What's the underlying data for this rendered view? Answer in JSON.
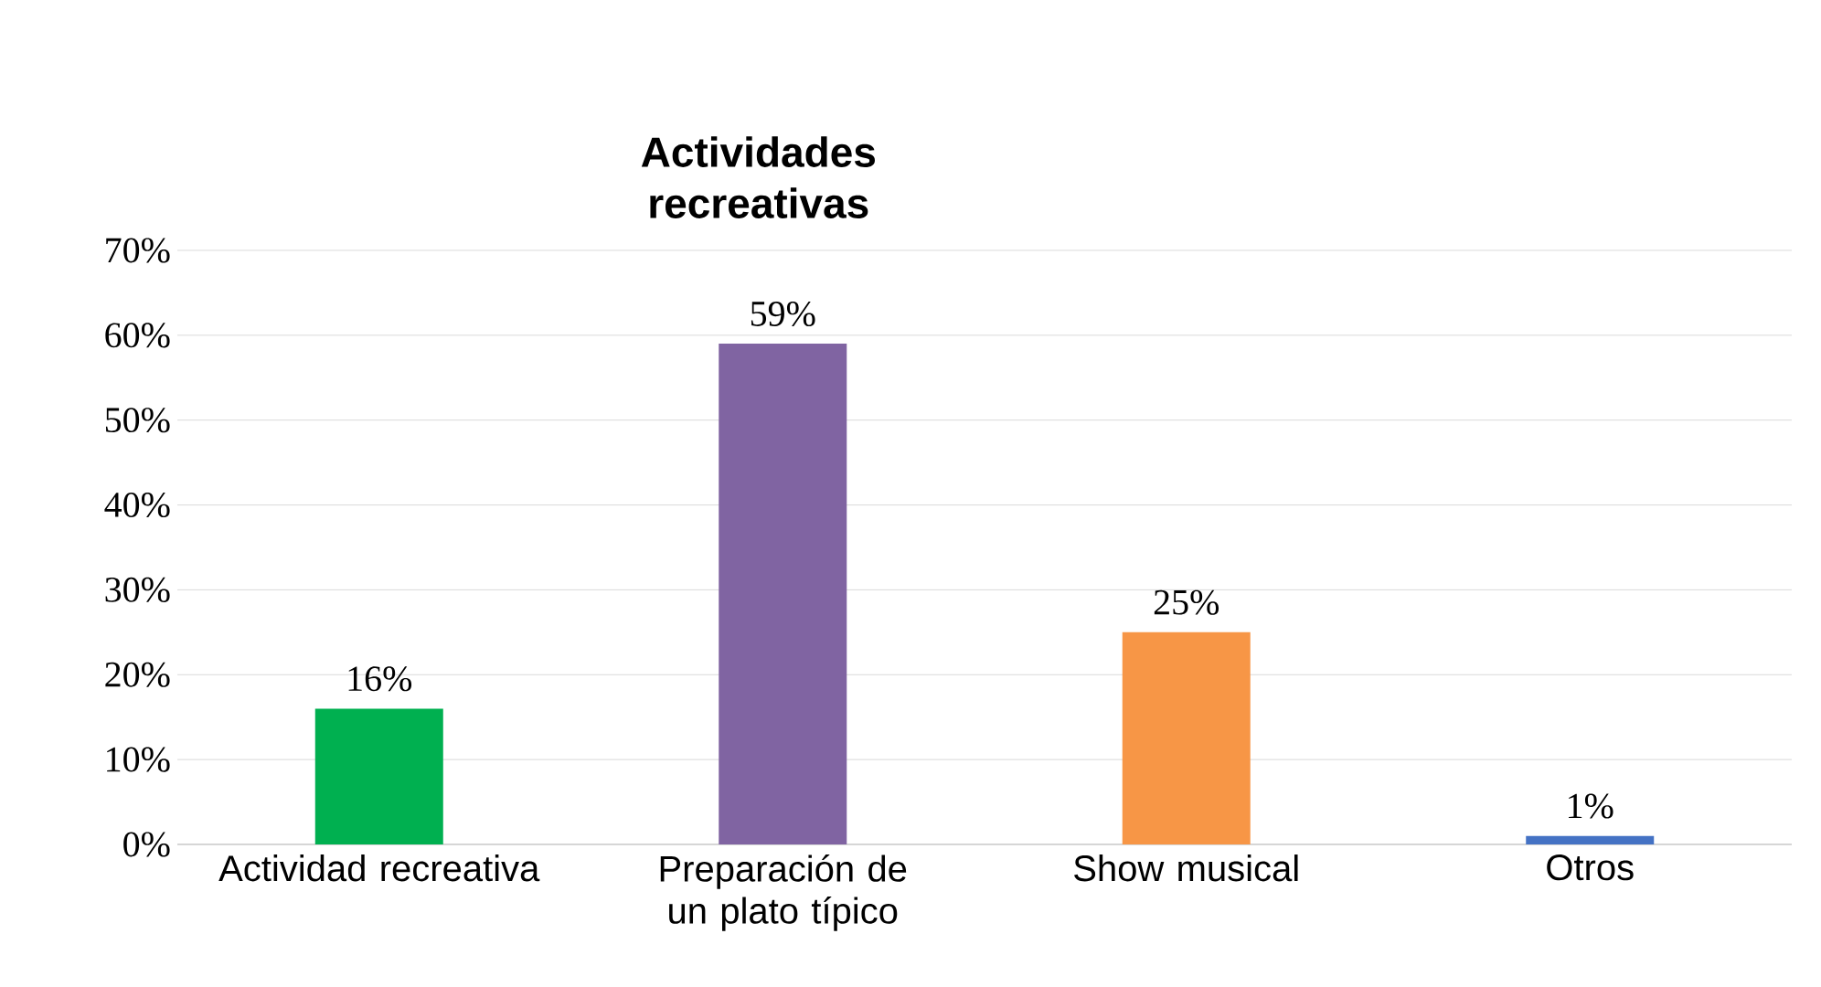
{
  "chart_data": {
    "type": "bar",
    "title": "Actividades recreativas",
    "categories": [
      "Actividad recreativa",
      "Preparación de un plato típico",
      "Show musical",
      "Otros"
    ],
    "values": [
      16,
      59,
      25,
      1
    ],
    "colors": [
      "#00b050",
      "#8064a2",
      "#f79646",
      "#4472c4"
    ],
    "value_labels": [
      "16%",
      "59%",
      "25%",
      "1%"
    ],
    "ylim": [
      0,
      70
    ],
    "yticks": [
      {
        "value": 0,
        "label": "0%"
      },
      {
        "value": 10,
        "label": "10%"
      },
      {
        "value": 20,
        "label": "20%"
      },
      {
        "value": 30,
        "label": "30%"
      },
      {
        "value": 40,
        "label": "40%"
      },
      {
        "value": 50,
        "label": "50%"
      },
      {
        "value": 60,
        "label": "60%"
      },
      {
        "value": 70,
        "label": "70%"
      }
    ],
    "grid": "y"
  }
}
